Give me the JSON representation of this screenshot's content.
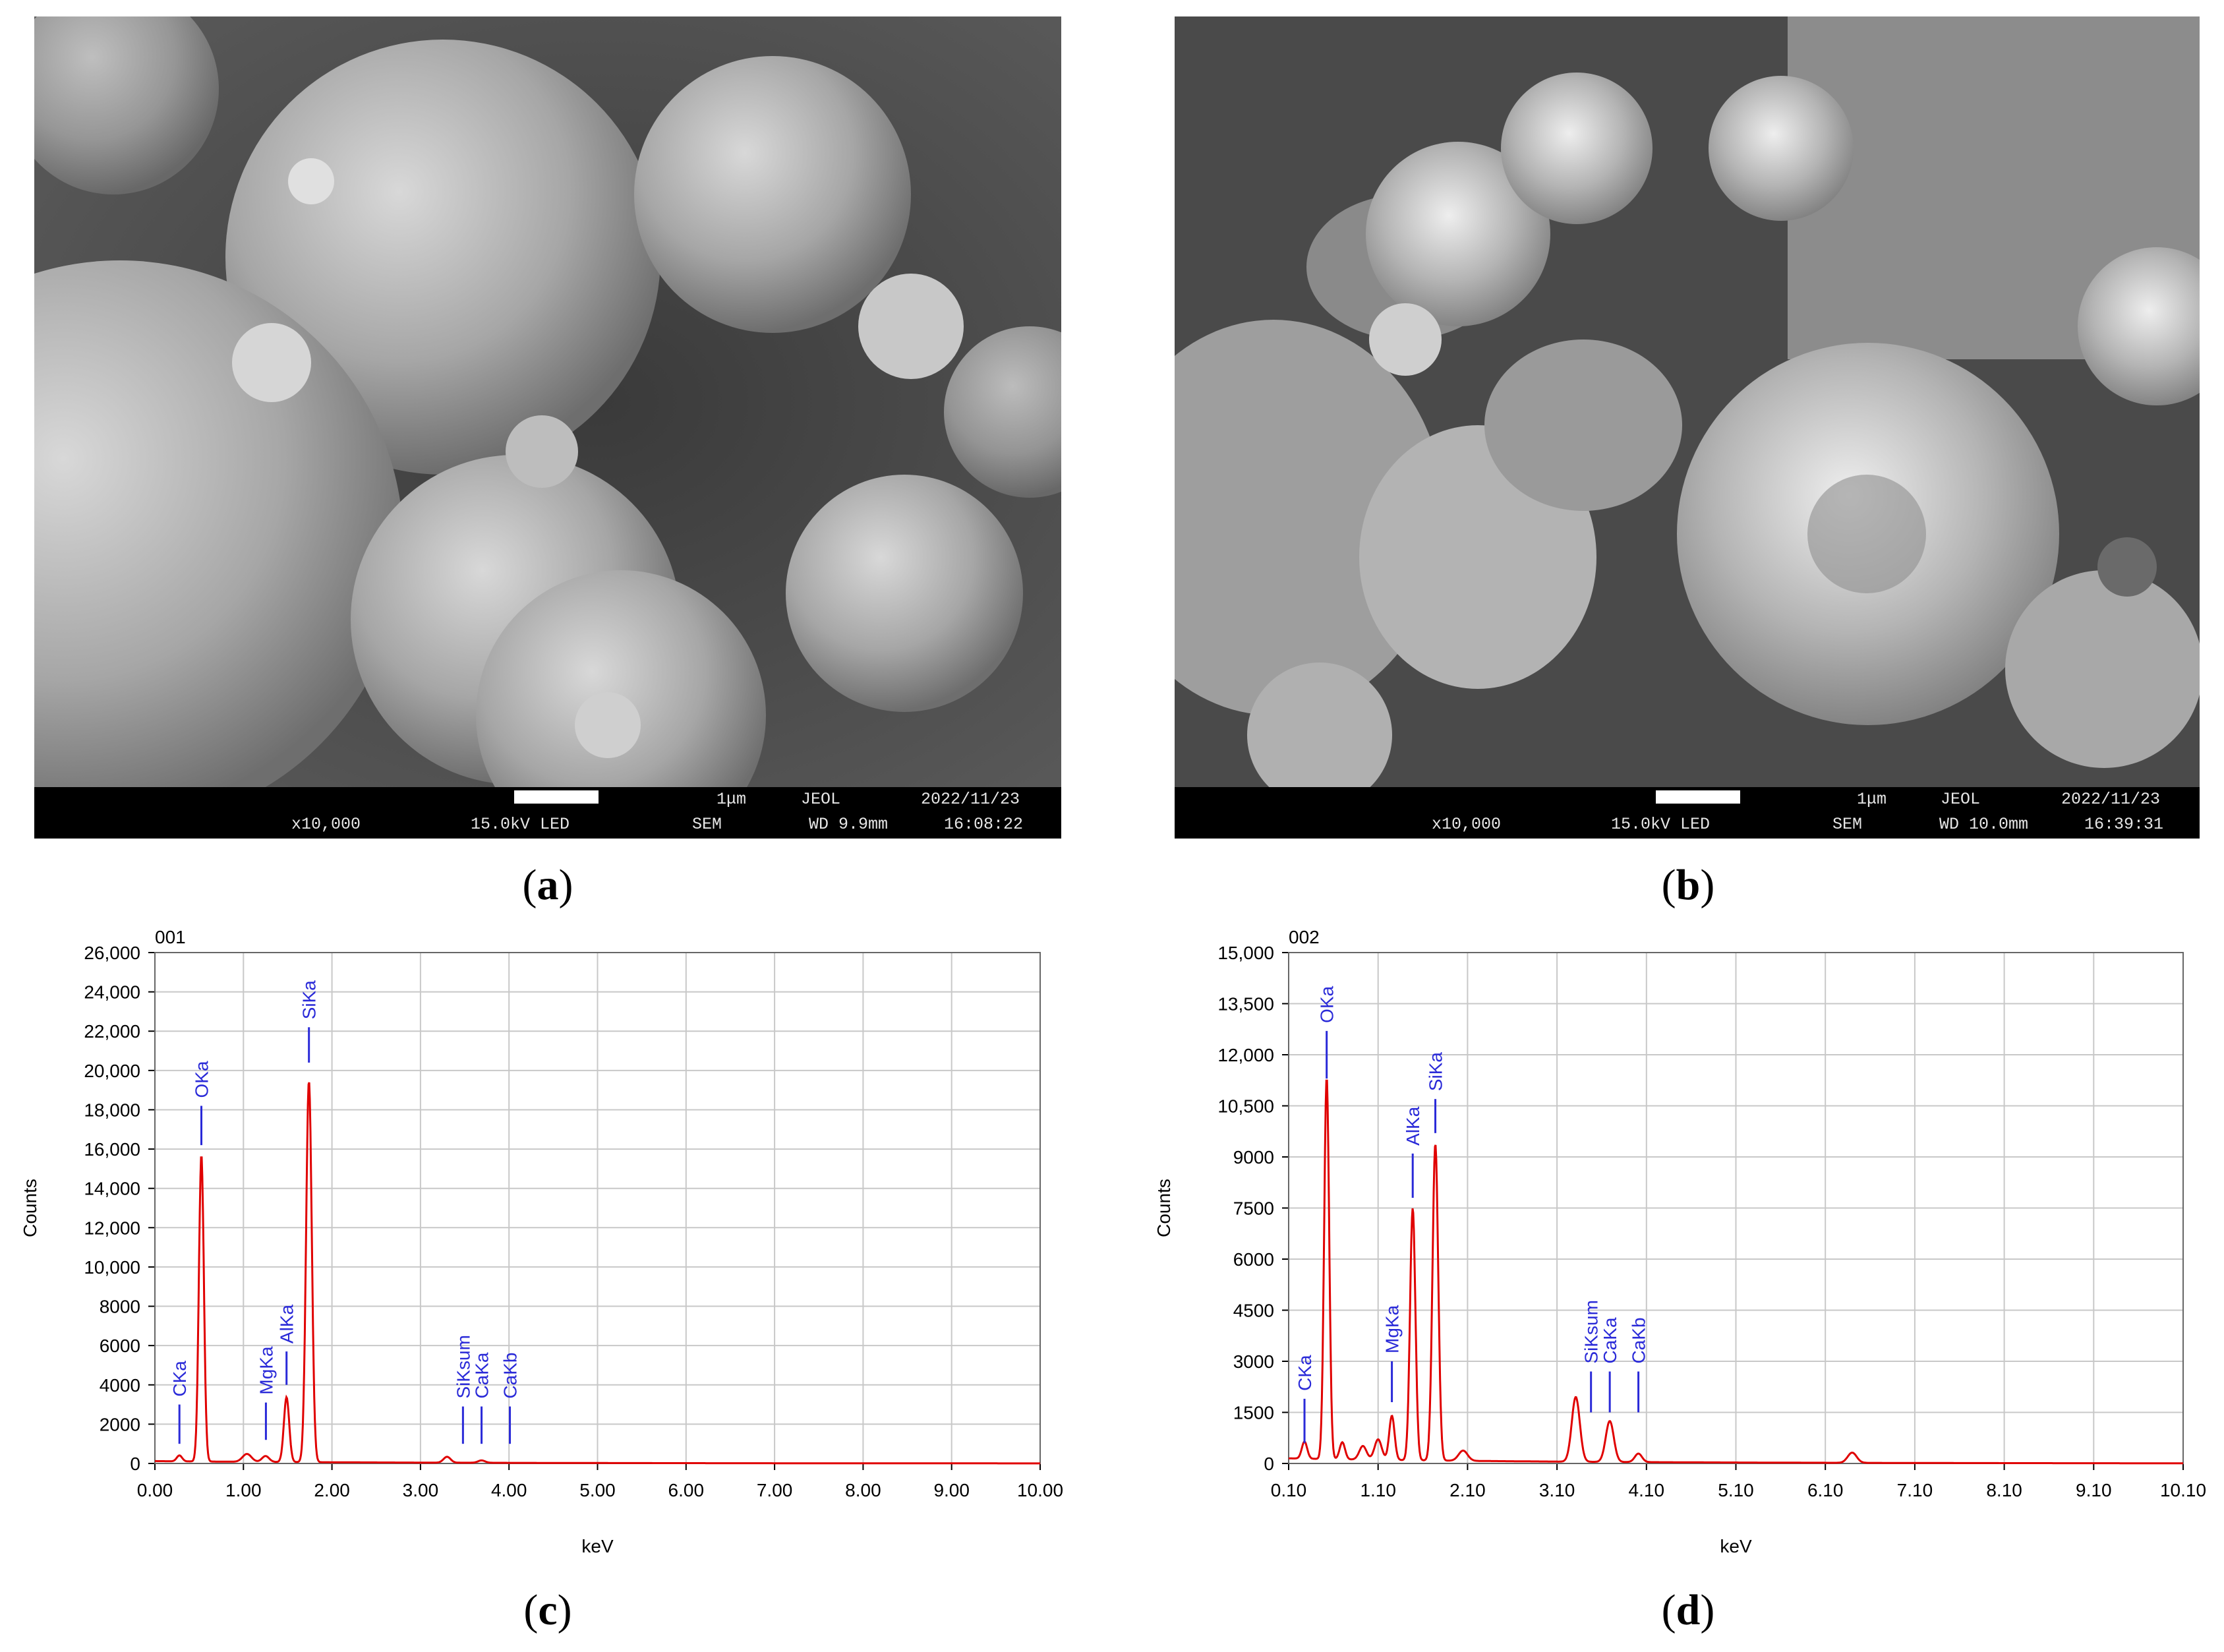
{
  "panels": {
    "a": {
      "label": "a",
      "info": {
        "scale_text": "1μm",
        "brand": "JEOL",
        "date": "2022/11/23",
        "mag": "x10,000",
        "voltage": "15.0kV LED",
        "mode": "SEM",
        "wd": "WD 9.9mm",
        "time": "16:08:22"
      }
    },
    "b": {
      "label": "b",
      "info": {
        "scale_text": "1μm",
        "brand": "JEOL",
        "date": "2022/11/23",
        "mag": "x10,000",
        "voltage": "15.0kV LED",
        "mode": "SEM",
        "wd": "WD 10.0mm",
        "time": "16:39:31"
      }
    },
    "c": {
      "label": "c"
    },
    "d": {
      "label": "d"
    }
  },
  "colors": {
    "spectrum": "#e00000",
    "peak_label": "#2a2ad8",
    "grid": "#c8c8c8"
  },
  "chart_data": [
    {
      "type": "line",
      "panel": "c",
      "title": "001",
      "xlabel": "keV",
      "ylabel": "Counts",
      "xlim": [
        0,
        10
      ],
      "ylim": [
        0,
        26000
      ],
      "x_ticks": [
        "0.00",
        "1.00",
        "2.00",
        "3.00",
        "4.00",
        "5.00",
        "6.00",
        "7.00",
        "8.00",
        "9.00",
        "10.00"
      ],
      "x_tick_values": [
        0,
        1,
        2,
        3,
        4,
        5,
        6,
        7,
        8,
        9,
        10
      ],
      "y_ticks": [
        "0",
        "2000",
        "4000",
        "6000",
        "8000",
        "10,000",
        "12,000",
        "14,000",
        "16,000",
        "18,000",
        "20,000",
        "22,000",
        "24,000",
        "26,000"
      ],
      "y_tick_values": [
        0,
        2000,
        4000,
        6000,
        8000,
        10000,
        12000,
        14000,
        16000,
        18000,
        20000,
        22000,
        24000,
        26000
      ],
      "peaks": [
        {
          "x": 0.277,
          "y": 300,
          "w": 0.03
        },
        {
          "x": 0.525,
          "y": 15600,
          "w": 0.028
        },
        {
          "x": 1.04,
          "y": 400,
          "w": 0.05
        },
        {
          "x": 1.25,
          "y": 300,
          "w": 0.04
        },
        {
          "x": 1.487,
          "y": 3300,
          "w": 0.03
        },
        {
          "x": 1.74,
          "y": 19400,
          "w": 0.032
        },
        {
          "x": 3.3,
          "y": 300,
          "w": 0.04
        },
        {
          "x": 3.69,
          "y": 120,
          "w": 0.04
        }
      ],
      "baseline": 120,
      "peak_labels": [
        {
          "text": "CKa",
          "x": 0.277,
          "marker_y": [
            1000,
            3000
          ]
        },
        {
          "text": "OKa",
          "x": 0.525,
          "marker_y": [
            16200,
            18200
          ]
        },
        {
          "text": "MgKa",
          "x": 1.254,
          "marker_y": [
            1200,
            3100
          ]
        },
        {
          "text": "AlKa",
          "x": 1.487,
          "marker_y": [
            4000,
            5700
          ]
        },
        {
          "text": "SiKa",
          "x": 1.74,
          "marker_y": [
            20400,
            22200
          ]
        },
        {
          "text": "SiKsum",
          "x": 3.48,
          "marker_y": [
            1000,
            2900
          ]
        },
        {
          "text": "CaKa",
          "x": 3.69,
          "marker_y": [
            1000,
            2900
          ]
        },
        {
          "text": "CaKb",
          "x": 4.01,
          "marker_y": [
            1000,
            2900
          ]
        }
      ]
    },
    {
      "type": "line",
      "panel": "d",
      "title": "002",
      "xlabel": "keV",
      "ylabel": "Counts",
      "xlim": [
        0.1,
        10.1
      ],
      "ylim": [
        0,
        15000
      ],
      "x_ticks": [
        "0.10",
        "1.10",
        "2.10",
        "3.10",
        "4.10",
        "5.10",
        "6.10",
        "7.10",
        "8.10",
        "9.10",
        "10.10"
      ],
      "x_tick_values": [
        0.1,
        1.1,
        2.1,
        3.1,
        4.1,
        5.1,
        6.1,
        7.1,
        8.1,
        9.1,
        10.1
      ],
      "y_ticks": [
        "0",
        "1500",
        "3000",
        "4500",
        "6000",
        "7500",
        "9000",
        "10,500",
        "12,000",
        "13,500",
        "15,000"
      ],
      "y_tick_values": [
        0,
        1500,
        3000,
        4500,
        6000,
        7500,
        9000,
        10500,
        12000,
        13500,
        15000
      ],
      "peaks": [
        {
          "x": 0.277,
          "y": 500,
          "w": 0.03
        },
        {
          "x": 0.525,
          "y": 11200,
          "w": 0.028
        },
        {
          "x": 0.7,
          "y": 500,
          "w": 0.03
        },
        {
          "x": 0.93,
          "y": 400,
          "w": 0.04
        },
        {
          "x": 1.1,
          "y": 600,
          "w": 0.04
        },
        {
          "x": 1.254,
          "y": 1300,
          "w": 0.03
        },
        {
          "x": 1.487,
          "y": 7400,
          "w": 0.03
        },
        {
          "x": 1.74,
          "y": 9300,
          "w": 0.032
        },
        {
          "x": 2.05,
          "y": 300,
          "w": 0.05
        },
        {
          "x": 3.31,
          "y": 1900,
          "w": 0.045
        },
        {
          "x": 3.69,
          "y": 1200,
          "w": 0.045
        },
        {
          "x": 4.01,
          "y": 250,
          "w": 0.04
        },
        {
          "x": 6.4,
          "y": 300,
          "w": 0.05
        }
      ],
      "baseline": 150,
      "peak_labels": [
        {
          "text": "CKa",
          "x": 0.277,
          "marker_y": [
            600,
            1900
          ]
        },
        {
          "text": "OKa",
          "x": 0.525,
          "marker_y": [
            11300,
            12700
          ]
        },
        {
          "text": "MgKa",
          "x": 1.254,
          "marker_y": [
            1800,
            3000
          ]
        },
        {
          "text": "AlKa",
          "x": 1.487,
          "marker_y": [
            7800,
            9100
          ]
        },
        {
          "text": "SiKa",
          "x": 1.74,
          "marker_y": [
            9700,
            10700
          ]
        },
        {
          "text": "SiKsum",
          "x": 3.48,
          "marker_y": [
            1500,
            2700
          ]
        },
        {
          "text": "CaKa",
          "x": 3.69,
          "marker_y": [
            1500,
            2700
          ]
        },
        {
          "text": "CaKb",
          "x": 4.01,
          "marker_y": [
            1500,
            2700
          ]
        }
      ]
    }
  ]
}
